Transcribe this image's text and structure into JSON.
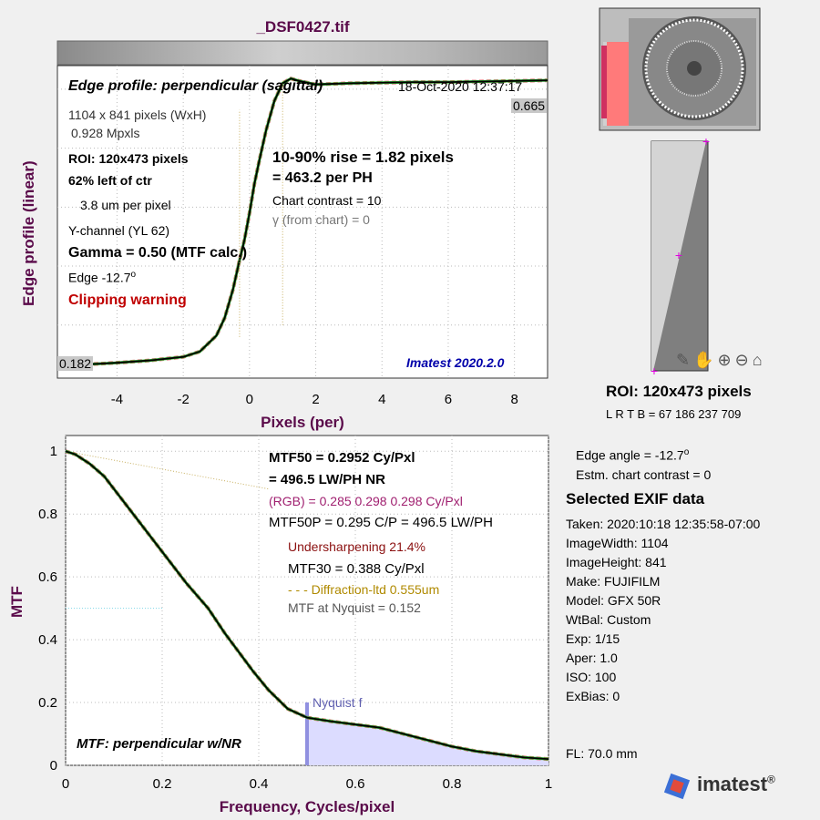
{
  "file_title": "_DSF0427.tif",
  "colors": {
    "label_purple": "#5a0a4a",
    "rgb_pink": "#a02070",
    "undersharp": "#8b1010",
    "diffraction": "#b08a00",
    "version_blue": "#0000aa",
    "clip_red": "#c00000"
  },
  "edge_panel": {
    "title": "Edge profile: perpendicular (sagittal)",
    "date": "18-Oct-2020 12:37:17",
    "size": "1104 x 841 pixels (WxH)",
    "mpx": "0.928 Mpxls",
    "roi": "ROI:  120x473 pixels",
    "left_of_ctr": "62% left of ctr",
    "um_per_pixel": "3.8 um per pixel",
    "channel": "Y-channel  (YL 62)",
    "gamma": "Gamma = 0.50 (MTF calc.)",
    "edge": "Edge  -12.7",
    "edge_sup": "o",
    "clipping": "Clipping warning",
    "rise": "10-90% rise = 1.82 pixels",
    "per_ph": "=  463.2 per PH",
    "contrast": "Chart contrast = 10",
    "gamma_chart": "γ (from chart) =     0",
    "version": "Imatest 2020.2.0",
    "max_label": "0.665",
    "min_label": "0.182",
    "ylabel": "Edge profile (linear)",
    "xlabel": "Pixels (per)"
  },
  "mtf_panel": {
    "mtf50": "MTF50 = 0.2952 Cy/Pxl",
    "lwph": "= 496.5 LW/PH  NR",
    "rgb": "(RGB) = 0.285  0.298  0.298 Cy/Pxl",
    "mtf50p": "MTF50P = 0.295 C/P = 496.5 LW/PH",
    "undersharpening": "Undersharpening 21.4%",
    "mtf30": "MTF30 = 0.388 Cy/Pxl",
    "diffraction": "- - - Diffraction-ltd  0.555um",
    "nyquist_mtf": "MTF at Nyquist = 0.152",
    "nyquist_label": "Nyquist f",
    "panel_title": "MTF: perpendicular w/NR",
    "ylabel": "MTF",
    "xlabel": "Frequency, Cycles/pixel"
  },
  "roi_info": {
    "title": "ROI:  120x473 pixels",
    "lrtb": "L R  T B = 67  186   237  709"
  },
  "side_info": {
    "edge_angle": "Edge angle = -12.7",
    "edge_angle_sup": "o",
    "chart_contrast": "Estm. chart contrast = 0",
    "exif_title": "Selected EXIF data",
    "exif": [
      "Taken: 2020:10:18 12:35:58-07:00",
      "ImageWidth:  1104",
      "ImageHeight:  841",
      "Make:  FUJIFILM",
      "Model:  GFX 50R",
      "WtBal:  Custom",
      "Exp:    1/15",
      "Aper:    1.0",
      "ISO:    100",
      "ExBias:  0"
    ],
    "fl": "FL:    70.0 mm"
  },
  "logo": {
    "text": "imatest",
    "mark": "®"
  },
  "chart_data": [
    {
      "type": "line",
      "title": "Edge profile: perpendicular (sagittal)",
      "xlabel": "Pixels (per)",
      "ylabel": "Edge profile (linear)",
      "xlim": [
        -5.8,
        9
      ],
      "ylim": [
        0.16,
        0.69
      ],
      "xticks": [
        -4,
        -2,
        0,
        2,
        4,
        6,
        8
      ],
      "grid": true,
      "series": [
        {
          "x": [
            -5.8,
            -5,
            -4,
            -3,
            -2,
            -1.5,
            -1,
            -0.75,
            -0.5,
            -0.3,
            -0.15,
            0,
            0.15,
            0.3,
            0.5,
            0.75,
            1,
            1.25,
            1.5,
            2,
            3,
            4,
            5,
            6,
            7,
            8,
            9
          ],
          "values": [
            0.182,
            0.183,
            0.186,
            0.19,
            0.196,
            0.205,
            0.232,
            0.262,
            0.31,
            0.36,
            0.395,
            0.44,
            0.49,
            0.53,
            0.58,
            0.63,
            0.66,
            0.668,
            0.664,
            0.658,
            0.66,
            0.661,
            0.662,
            0.662,
            0.663,
            0.664,
            0.665
          ]
        }
      ]
    },
    {
      "type": "line",
      "title": "MTF: perpendicular w/NR",
      "xlabel": "Frequency, Cycles/pixel",
      "ylabel": "MTF",
      "xlim": [
        0,
        1
      ],
      "ylim": [
        0,
        1.05
      ],
      "xticks": [
        0,
        0.2,
        0.4,
        0.6,
        0.8,
        1
      ],
      "yticks": [
        0,
        0.2,
        0.4,
        0.6,
        0.8,
        1
      ],
      "grid": true,
      "series": [
        {
          "x": [
            0,
            0.02,
            0.05,
            0.08,
            0.1,
            0.15,
            0.2,
            0.25,
            0.2952,
            0.33,
            0.388,
            0.42,
            0.46,
            0.5,
            0.55,
            0.6,
            0.65,
            0.7,
            0.75,
            0.8,
            0.85,
            0.9,
            0.95,
            1
          ],
          "values": [
            1,
            0.99,
            0.96,
            0.92,
            0.88,
            0.78,
            0.68,
            0.58,
            0.5,
            0.42,
            0.3,
            0.24,
            0.18,
            0.152,
            0.14,
            0.13,
            0.12,
            0.1,
            0.08,
            0.06,
            0.045,
            0.035,
            0.025,
            0.02
          ]
        }
      ]
    }
  ]
}
